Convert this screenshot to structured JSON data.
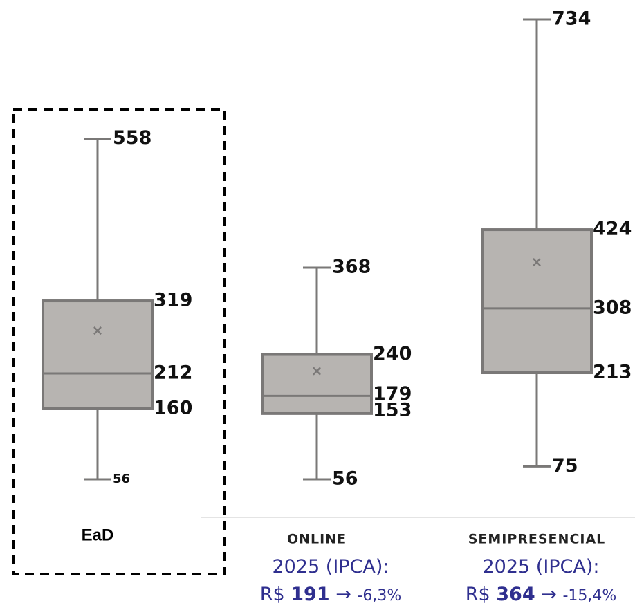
{
  "chart_data": {
    "type": "box",
    "title": "",
    "xlabel": "",
    "ylabel": "",
    "categories": [
      "EaD",
      "ONLINE",
      "SEMIPRESENCIAL"
    ],
    "series": [
      {
        "category": "EaD",
        "min": 56,
        "q1": 160,
        "median": 212,
        "q3": 319,
        "max": 558,
        "mean_marker": true
      },
      {
        "category": "ONLINE",
        "min": 56,
        "q1": 153,
        "median": 179,
        "q3": 240,
        "max": 368,
        "mean_marker": true
      },
      {
        "category": "SEMIPRESENCIAL",
        "min": 75,
        "q1": 213,
        "median": 308,
        "q3": 424,
        "max": 734,
        "mean_marker": true
      }
    ],
    "highlight": {
      "category": "EaD",
      "style": "dashed-box"
    },
    "colors": {
      "box_fill": "#b7b4b1",
      "box_stroke": "#7a7877",
      "whisker": "#7a7877",
      "note_text": "#2f2f8f",
      "mean_marker": "#7a7877"
    },
    "notes": [
      {
        "category": "ONLINE",
        "line1": "2025 (IPCA):",
        "prefix": "R$ ",
        "value": "191",
        "arrow": "→",
        "change": "-6,3%"
      },
      {
        "category": "SEMIPRESENCIAL",
        "line1": "2025 (IPCA):",
        "prefix": "R$ ",
        "value": "364",
        "arrow": "→",
        "change": "-15,4%"
      }
    ]
  }
}
